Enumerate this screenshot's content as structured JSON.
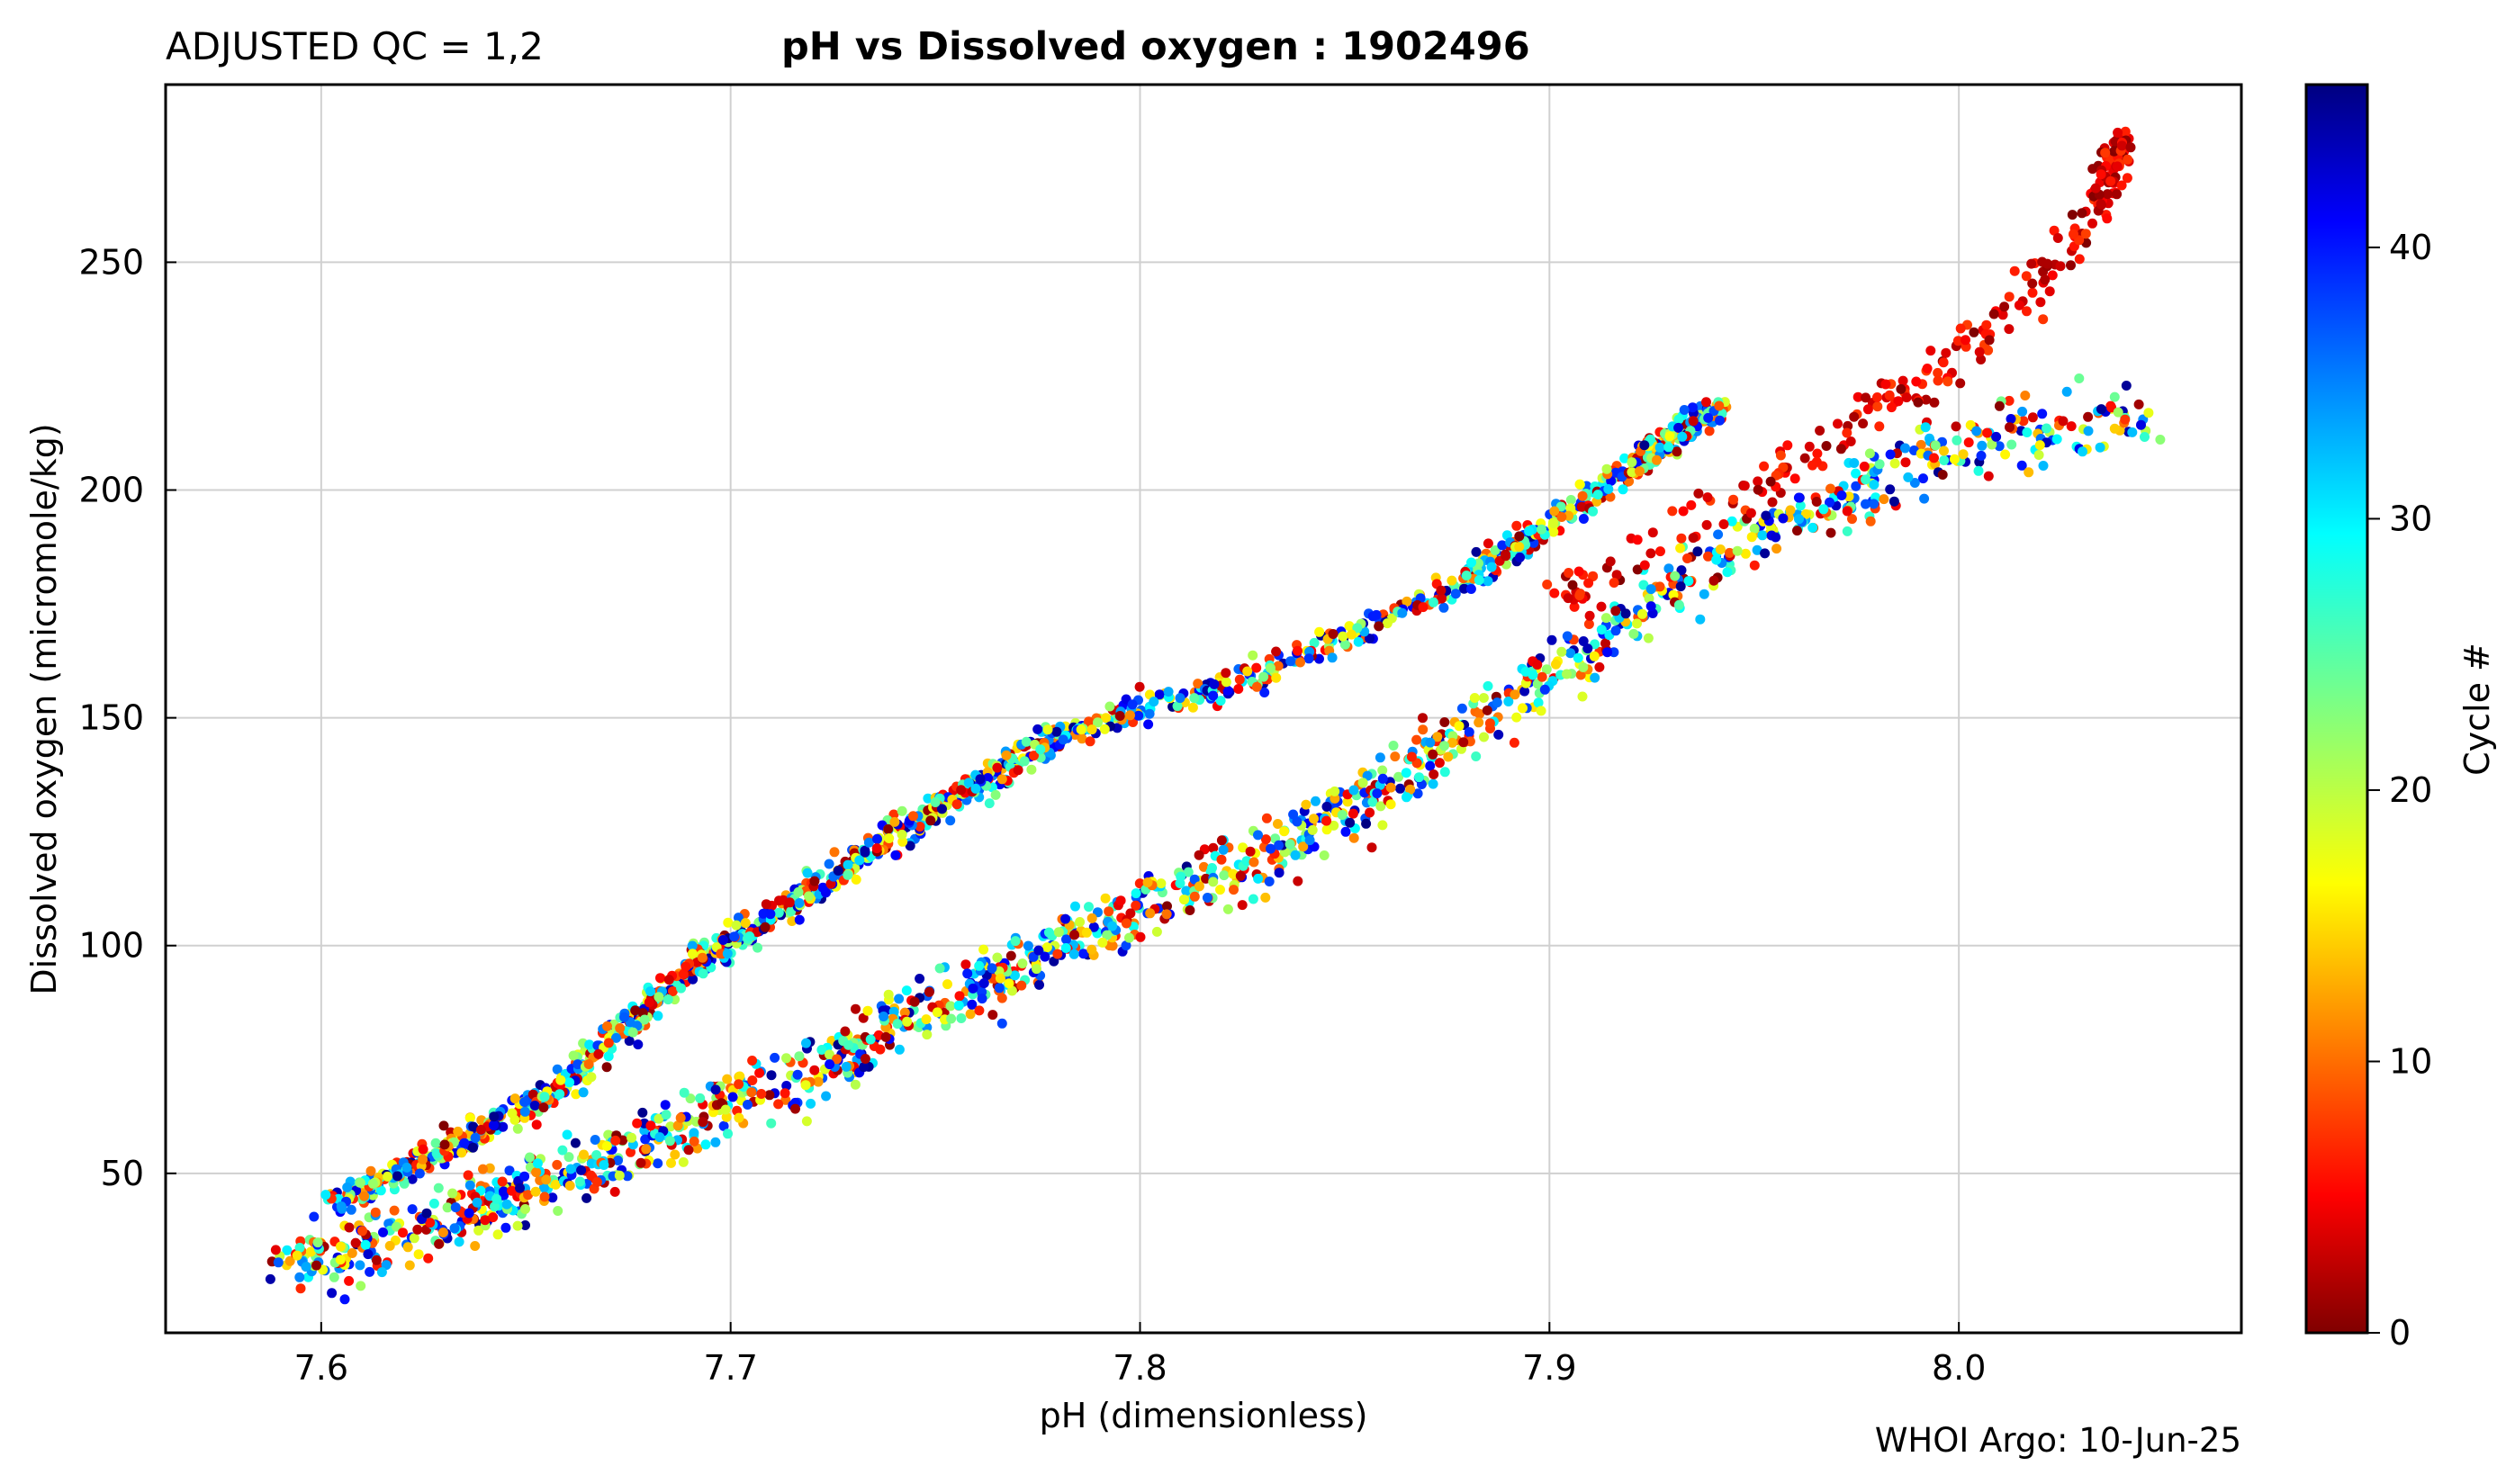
{
  "header": {
    "qc_label": "ADJUSTED QC = 1,2",
    "title": "pH vs Dissolved oxygen : 1902496"
  },
  "footer": {
    "credit": "WHOI Argo: 10-Jun-25"
  },
  "colorbar": {
    "label": "Cycle #",
    "ticks": [
      0,
      10,
      20,
      30,
      40
    ],
    "range": [
      0,
      46
    ],
    "colormap": "jet-reversed (0 = dark red, 46 = dark blue)"
  },
  "chart_data": {
    "type": "scatter",
    "xlabel": "pH  (dimensionless)",
    "ylabel": "Dissolved oxygen  (micromole/kg)",
    "xlim": [
      7.562,
      8.069
    ],
    "ylim": [
      15,
      289
    ],
    "xticks": [
      7.6,
      7.7,
      7.8,
      7.9,
      8.0
    ],
    "xtick_labels": [
      "7.6",
      "7.7",
      "7.8",
      "7.9",
      "8.0"
    ],
    "yticks": [
      50,
      100,
      150,
      200,
      250
    ],
    "ytick_labels": [
      "50",
      "100",
      "150",
      "200",
      "250"
    ],
    "grid": true,
    "color_by": "Cycle #",
    "branches": [
      {
        "description": "upper branch",
        "path": [
          [
            7.605,
            44
          ],
          [
            7.63,
            55
          ],
          [
            7.66,
            70
          ],
          [
            7.69,
            95
          ],
          [
            7.72,
            112
          ],
          [
            7.75,
            130
          ],
          [
            7.78,
            146
          ],
          [
            7.83,
            160
          ],
          [
            7.88,
            180
          ],
          [
            7.92,
            205
          ],
          [
            7.942,
            219
          ]
        ],
        "spread": 3,
        "cycle_range": [
          0,
          46
        ]
      },
      {
        "description": "lower branch",
        "path": [
          [
            7.59,
            29
          ],
          [
            7.63,
            40
          ],
          [
            7.66,
            50
          ],
          [
            7.7,
            65
          ],
          [
            7.74,
            82
          ],
          [
            7.78,
            100
          ],
          [
            7.82,
            115
          ],
          [
            7.86,
            135
          ],
          [
            7.9,
            160
          ],
          [
            7.95,
            190
          ],
          [
            8.0,
            210
          ],
          [
            8.045,
            217
          ]
        ],
        "spread": 7,
        "cycle_range": [
          0,
          46
        ]
      },
      {
        "description": "high-oxygen tail (early cycles)",
        "path": [
          [
            7.9,
            175
          ],
          [
            7.95,
            200
          ],
          [
            7.99,
            222
          ],
          [
            8.02,
            245
          ],
          [
            8.035,
            265
          ],
          [
            8.04,
            276
          ]
        ],
        "spread": 5,
        "cycle_range": [
          0,
          8
        ]
      }
    ]
  }
}
